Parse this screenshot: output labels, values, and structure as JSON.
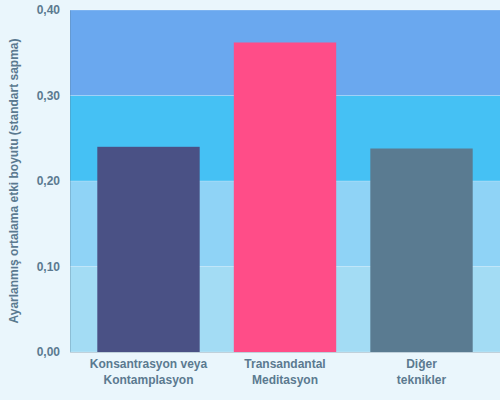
{
  "chart_data": {
    "type": "bar",
    "y_label": "Ayarlanmış ortalama etki boyutu (standart sapma)",
    "categories": [
      "Konsantrasyon veya Kontamplasyon",
      "Transandantal Meditasyon",
      "Diğer teknikler"
    ],
    "values": [
      0.24,
      0.362,
      0.238
    ],
    "colors": [
      "#4a5185",
      "#ff4d88",
      "#5a7b91"
    ],
    "ylim": [
      0,
      0.4
    ],
    "yticks": [
      {
        "value": 0,
        "label": "0,00"
      },
      {
        "value": 0.1,
        "label": "0,10"
      },
      {
        "value": 0.2,
        "label": "0,20"
      },
      {
        "value": 0.3,
        "label": "0,30"
      },
      {
        "value": 0.4,
        "label": "0,40"
      }
    ],
    "grid": true
  }
}
